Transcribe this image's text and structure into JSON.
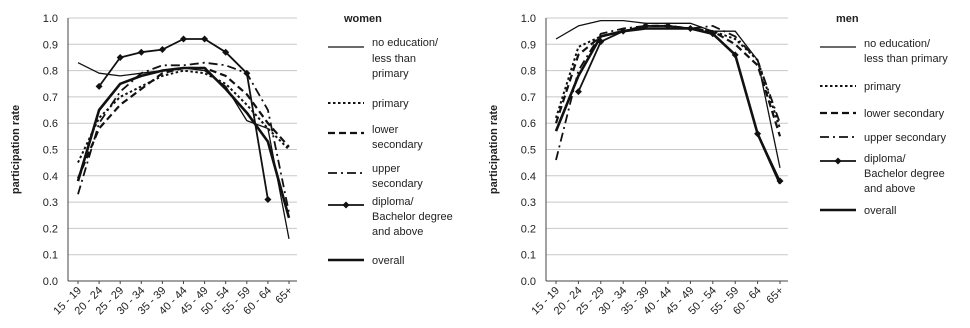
{
  "chart_data": [
    {
      "type": "line",
      "legend_title": "women",
      "ylabel": "participation rate",
      "xlabel": "",
      "ylim": [
        0,
        1
      ],
      "yticks": [
        "0.0",
        "0.1",
        "0.2",
        "0.3",
        "0.4",
        "0.5",
        "0.6",
        "0.7",
        "0.8",
        "0.9",
        "1.0"
      ],
      "categories": [
        "15 - 19",
        "20 - 24",
        "25 - 29",
        "30 - 34",
        "35 - 39",
        "40 - 44",
        "45 - 49",
        "50 - 54",
        "55 - 59",
        "60 - 64",
        "65+"
      ],
      "grid": true,
      "legend_position": "right",
      "series": [
        {
          "name": "no education/ less than primary",
          "style": "solid-thin",
          "values": [
            0.83,
            0.79,
            0.78,
            0.79,
            0.8,
            0.81,
            0.8,
            0.74,
            0.61,
            0.58,
            0.16
          ]
        },
        {
          "name": "primary",
          "style": "dotted",
          "values": [
            0.45,
            0.62,
            0.7,
            0.74,
            0.78,
            0.8,
            0.79,
            0.75,
            0.67,
            0.58,
            0.5
          ]
        },
        {
          "name": "lower secondary",
          "style": "dashed",
          "values": [
            0.39,
            0.58,
            0.67,
            0.73,
            0.79,
            0.81,
            0.81,
            0.78,
            0.71,
            0.6,
            0.51
          ]
        },
        {
          "name": "upper secondary",
          "style": "dashdot",
          "values": [
            0.33,
            0.6,
            0.72,
            0.79,
            0.82,
            0.82,
            0.83,
            0.82,
            0.79,
            0.65,
            0.26
          ]
        },
        {
          "name": "diploma/ Bachelor degree and above",
          "style": "diamond",
          "values": [
            null,
            0.74,
            0.85,
            0.87,
            0.88,
            0.92,
            0.92,
            0.87,
            0.79,
            0.31,
            null
          ]
        },
        {
          "name": "overall",
          "style": "solid-thick",
          "values": [
            0.38,
            0.65,
            0.75,
            0.78,
            0.8,
            0.81,
            0.81,
            0.73,
            0.64,
            0.53,
            0.24
          ]
        }
      ]
    },
    {
      "type": "line",
      "legend_title": "men",
      "ylabel": "participation rate",
      "xlabel": "",
      "ylim": [
        0,
        1
      ],
      "yticks": [
        "0.0",
        "0.1",
        "0.2",
        "0.3",
        "0.4",
        "0.5",
        "0.6",
        "0.7",
        "0.8",
        "0.9",
        "1.0"
      ],
      "categories": [
        "15 - 19",
        "20 - 24",
        "25 - 29",
        "30 - 34",
        "35 - 39",
        "40 - 44",
        "45 - 49",
        "50 - 54",
        "55 - 59",
        "60 - 64",
        "65+"
      ],
      "grid": true,
      "legend_position": "right",
      "series": [
        {
          "name": "no education/ less than primary",
          "style": "solid-thin",
          "values": [
            0.92,
            0.97,
            0.99,
            0.99,
            0.98,
            0.98,
            0.98,
            0.95,
            0.95,
            0.84,
            0.43
          ]
        },
        {
          "name": "primary",
          "style": "dotted",
          "values": [
            0.62,
            0.89,
            0.93,
            0.95,
            0.97,
            0.97,
            0.96,
            0.95,
            0.92,
            0.84,
            0.58
          ]
        },
        {
          "name": "lower secondary",
          "style": "dashed",
          "values": [
            0.6,
            0.86,
            0.93,
            0.95,
            0.97,
            0.97,
            0.96,
            0.95,
            0.9,
            0.82,
            0.55
          ]
        },
        {
          "name": "upper secondary",
          "style": "dashdot",
          "values": [
            0.46,
            0.8,
            0.94,
            0.96,
            0.97,
            0.97,
            0.96,
            0.97,
            0.93,
            0.84,
            0.6
          ]
        },
        {
          "name": "diploma/ Bachelor degree and above",
          "style": "diamond",
          "values": [
            null,
            0.72,
            0.91,
            0.95,
            0.97,
            0.97,
            0.96,
            0.94,
            0.86,
            0.56,
            0.38
          ]
        },
        {
          "name": "overall",
          "style": "solid-thick",
          "values": [
            0.57,
            0.78,
            0.93,
            0.95,
            0.96,
            0.96,
            0.96,
            0.94,
            0.86,
            0.56,
            0.37
          ]
        }
      ]
    }
  ]
}
